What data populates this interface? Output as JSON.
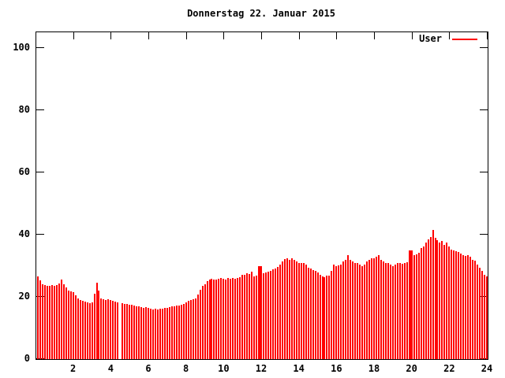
{
  "title": "Donnerstag 22. Januar 2015",
  "legend": {
    "label": "User",
    "color": "#ff0000",
    "position": "top-right-inside"
  },
  "chart_data": {
    "type": "bar",
    "title": "Donnerstag 22. Januar 2015",
    "series_name": "User",
    "bar_color": "#ff0000",
    "background_color": "#ffffff",
    "border_color": "#000000",
    "grid": false,
    "xlabel": "",
    "ylabel": "",
    "xlim": [
      0,
      24
    ],
    "ylim": [
      0,
      105
    ],
    "x_ticks": [
      2,
      4,
      6,
      8,
      10,
      12,
      14,
      16,
      18,
      20,
      22,
      24
    ],
    "x_tick_labels": [
      "2",
      "4",
      "6",
      "8",
      "10",
      "12",
      "14",
      "16",
      "18",
      "20",
      "22",
      "24"
    ],
    "y_ticks": [
      0,
      20,
      40,
      60,
      80,
      100
    ],
    "y_tick_labels": [
      "0",
      "20",
      "40",
      "60",
      "80",
      "100"
    ],
    "start_hour": 0.125,
    "interval_hours": 0.125,
    "dense_double_bars_at_hours": [
      12,
      20
    ],
    "values": [
      26.5,
      25.3,
      24.0,
      23.8,
      23.5,
      23.5,
      23.7,
      23.5,
      23.8,
      24.2,
      25.5,
      24.0,
      23.0,
      22.0,
      21.8,
      21.5,
      20.5,
      19.5,
      19.0,
      18.8,
      18.5,
      18.3,
      18.0,
      18.3,
      21.0,
      24.5,
      22.0,
      19.5,
      19.3,
      19.0,
      19.2,
      19.0,
      18.8,
      18.5,
      18.3,
      null,
      18.0,
      17.8,
      17.8,
      17.5,
      17.5,
      17.3,
      17.0,
      17.0,
      16.8,
      16.5,
      16.8,
      16.5,
      16.3,
      16.0,
      16.2,
      16.0,
      16.2,
      16.3,
      16.5,
      16.5,
      16.8,
      17.0,
      17.0,
      17.2,
      17.3,
      17.5,
      17.8,
      18.2,
      18.8,
      19.0,
      19.3,
      19.5,
      20.7,
      22.3,
      23.5,
      24.0,
      25.0,
      25.5,
      25.8,
      25.5,
      25.7,
      25.8,
      26.0,
      25.8,
      25.7,
      26.0,
      25.8,
      26.2,
      25.8,
      26.0,
      26.3,
      27.2,
      27.0,
      27.5,
      27.3,
      28.0,
      26.5,
      26.8,
      26.0,
      30.0,
      27.5,
      27.8,
      28.0,
      28.3,
      28.8,
      29.2,
      29.6,
      30.5,
      31.5,
      32.2,
      32.5,
      32.0,
      32.3,
      31.8,
      31.5,
      31.0,
      30.8,
      31.0,
      30.5,
      29.5,
      29.0,
      28.5,
      28.3,
      27.8,
      27.0,
      26.5,
      26.3,
      26.8,
      26.9,
      28.3,
      30.4,
      29.8,
      30.2,
      30.5,
      31.5,
      32.0,
      33.5,
      31.8,
      31.3,
      31.0,
      30.8,
      30.3,
      30.0,
      30.5,
      31.5,
      32.0,
      32.5,
      32.3,
      32.8,
      33.4,
      32.0,
      31.5,
      31.0,
      30.8,
      30.5,
      30.0,
      30.3,
      30.8,
      31.0,
      30.7,
      30.9,
      31.2,
      33.0,
      35.0,
      33.5,
      33.8,
      34.2,
      35.8,
      36.3,
      37.5,
      38.5,
      39.3,
      41.5,
      39.0,
      38.3,
      37.5,
      37.9,
      36.8,
      37.5,
      36.2,
      35.3,
      35.0,
      34.8,
      34.5,
      34.0,
      33.5,
      33.2,
      33.4,
      32.8,
      32.0,
      31.6,
      30.4,
      29.5,
      28.3,
      27.0,
      26.6
    ]
  }
}
